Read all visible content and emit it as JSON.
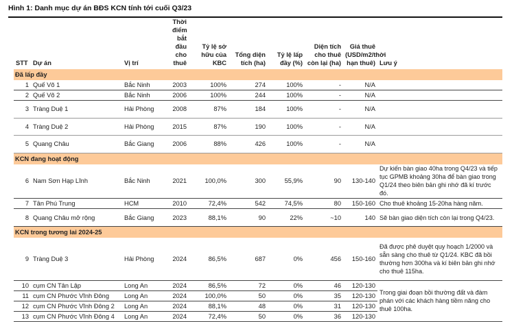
{
  "title": "Hình 1: Danh mục dự án BĐS KCN tính tới cuối Q3/23",
  "headers": [
    "STT",
    "Dự án",
    "Vị trí",
    "Thời điểm bắt đầu cho thuê",
    "Tỷ lệ sở hữu của KBC",
    "Tổng diện tích (ha)",
    "Tỷ lệ lấp đầy (%)",
    "Diện tích cho thuê còn lại (ha)",
    "Giá thuê (USD/m2/thời hạn thuê)",
    "Lưu ý"
  ],
  "sections": [
    {
      "label": "Đã lấp đầy",
      "rows": [
        {
          "stt": "1",
          "name": "Quế Võ 1",
          "loc": "Bắc Ninh",
          "year": "2003",
          "kbc": "100%",
          "area": "274",
          "fill": "100%",
          "remain": "-",
          "price": "N/A",
          "note": ""
        },
        {
          "stt": "2",
          "name": "Quế Võ 2",
          "loc": "Bắc Ninh",
          "year": "2006",
          "kbc": "100%",
          "area": "244",
          "fill": "100%",
          "remain": "-",
          "price": "N/A",
          "note": ""
        },
        {
          "stt": "3",
          "name": "Tràng Duệ 1",
          "loc": "Hải Phòng",
          "year": "2008",
          "kbc": "87%",
          "area": "184",
          "fill": "100%",
          "remain": "-",
          "price": "N/A",
          "note": ""
        },
        {
          "stt": "4",
          "name": "Tràng Duệ 2",
          "loc": "Hải Phòng",
          "year": "2015",
          "kbc": "87%",
          "area": "190",
          "fill": "100%",
          "remain": "-",
          "price": "N/A",
          "note": ""
        },
        {
          "stt": "5",
          "name": "Quang Châu",
          "loc": "Bắc Giang",
          "year": "2006",
          "kbc": "88%",
          "area": "426",
          "fill": "100%",
          "remain": "-",
          "price": "N/A",
          "note": ""
        }
      ]
    },
    {
      "label": "KCN đang hoạt động",
      "rows": [
        {
          "stt": "6",
          "name": "Nam Sơn Hạp Lĩnh",
          "loc": "Bắc Ninh",
          "year": "2021",
          "kbc": "100,0%",
          "area": "300",
          "fill": "55,9%",
          "remain": "90",
          "price": "130-140",
          "note": "Dự kiến bàn giao 40ha trong Q4/23 và tiếp tục GPMB khoảng 30ha để bàn giao trong Q1/24 theo biên bản ghi nhớ đã kí trước đó."
        },
        {
          "stt": "7",
          "name": "Tân Phú Trung",
          "loc": "HCM",
          "year": "2010",
          "kbc": "72,4%",
          "area": "542",
          "fill": "74,5%",
          "remain": "80",
          "price": "150-160",
          "note": "Cho thuê khoảng 15-20ha hàng năm."
        },
        {
          "stt": "8",
          "name": "Quang Châu mở rộng",
          "loc": "Bắc Giang",
          "year": "2023",
          "kbc": "88,1%",
          "area": "90",
          "fill": "22%",
          "remain": "~10",
          "price": "140",
          "note": "Sẽ bàn giao diện tích còn lại trong Q4/23."
        }
      ]
    },
    {
      "label": "KCN trong tương lai 2024-25",
      "rows": [
        {
          "stt": "9",
          "name": "Tràng Duệ 3",
          "loc": "Hải Phòng",
          "year": "2024",
          "kbc": "86,5%",
          "area": "687",
          "fill": "0%",
          "remain": "456",
          "price": "150-160",
          "note": "Đã được phê duyệt quy hoạch 1/2000 và sẵn sàng cho thuê từ Q1/24. KBC đã bồi thường hơn 300ha và kí biên bản ghi nhớ cho thuê 115ha."
        },
        {
          "stt": "10",
          "name": "cụm CN Tân Lập",
          "loc": "Long An",
          "year": "2024",
          "kbc": "86,5%",
          "area": "72",
          "fill": "0%",
          "remain": "46",
          "price": "120-130",
          "note": "Trong giai đoạn bồi thường đất và đàm phán với các khách hàng tiềm năng cho thuê 100ha."
        },
        {
          "stt": "11",
          "name": "cụm CN Phước Vĩnh Đông",
          "loc": "Long An",
          "year": "2024",
          "kbc": "100,0%",
          "area": "50",
          "fill": "0%",
          "remain": "35",
          "price": "120-130",
          "note": ""
        },
        {
          "stt": "12",
          "name": "cụm CN Phước Vĩnh Đông 2",
          "loc": "Long An",
          "year": "2024",
          "kbc": "88,1%",
          "area": "48",
          "fill": "0%",
          "remain": "31",
          "price": "120-130",
          "note": ""
        },
        {
          "stt": "13",
          "name": "cụm CN Phước Vĩnh Đông 4",
          "loc": "Long An",
          "year": "2024",
          "kbc": "72,4%",
          "area": "50",
          "fill": "0%",
          "remain": "36",
          "price": "120-130",
          "note": ""
        }
      ]
    }
  ]
}
